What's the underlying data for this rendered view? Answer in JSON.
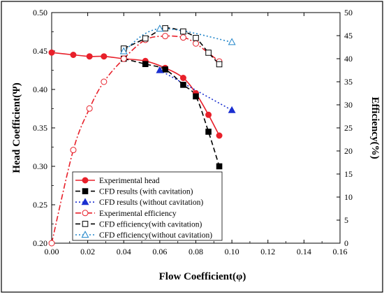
{
  "chart_data": {
    "type": "line",
    "xlabel": "Flow Coefficient(φ)",
    "ylabel": "Head Coefficient(Ψ)",
    "y2label": "Efficiency(%)",
    "xlim": [
      0.0,
      0.16
    ],
    "ylim": [
      0.2,
      0.5
    ],
    "y2lim": [
      0,
      50
    ],
    "xticks": [
      "0.00",
      "0.02",
      "0.04",
      "0.06",
      "0.08",
      "0.10",
      "0.12",
      "0.14",
      "0.16"
    ],
    "yticks": [
      "0.20",
      "0.25",
      "0.30",
      "0.35",
      "0.40",
      "0.45",
      "0.50"
    ],
    "y2ticks": [
      "0",
      "5",
      "10",
      "15",
      "20",
      "25",
      "30",
      "35",
      "40",
      "45",
      "50"
    ],
    "grid": false,
    "legend_position": "bottom-center",
    "series": [
      {
        "name": "Experimental head",
        "axis": "left",
        "color": "#e8202a",
        "line": "solid",
        "marker": "circle",
        "filled": true,
        "x": [
          0.0,
          0.012,
          0.021,
          0.029,
          0.04,
          0.052,
          0.063,
          0.073,
          0.08,
          0.087,
          0.093
        ],
        "y": [
          0.448,
          0.445,
          0.443,
          0.443,
          0.44,
          0.437,
          0.428,
          0.415,
          0.395,
          0.367,
          0.34
        ]
      },
      {
        "name": "CFD results (with cavitation)",
        "axis": "left",
        "color": "#000000",
        "line": "dashed",
        "marker": "square",
        "filled": true,
        "x": [
          0.04,
          0.052,
          0.063,
          0.073,
          0.08,
          0.087,
          0.093
        ],
        "y": [
          0.44,
          0.433,
          0.426,
          0.406,
          0.391,
          0.345,
          0.3
        ]
      },
      {
        "name": "CFD results (without cavitation)",
        "axis": "left",
        "color": "#1a2fd0",
        "line": "dotted",
        "marker": "triangle",
        "filled": true,
        "x": [
          0.06,
          0.1
        ],
        "y": [
          0.425,
          0.373
        ]
      },
      {
        "name": "Experimental efficiency",
        "axis": "right",
        "color": "#e8202a",
        "line": "dashdot",
        "marker": "circle",
        "filled": false,
        "x": [
          0.0,
          0.012,
          0.021,
          0.029,
          0.04,
          0.052,
          0.063,
          0.073,
          0.08,
          0.093
        ],
        "y": [
          0.0,
          20.2,
          29.2,
          35.0,
          40.0,
          44.1,
          44.9,
          44.6,
          43.3,
          39.4
        ]
      },
      {
        "name": "CFD efficiency(with cavitation)",
        "axis": "right",
        "color": "#000000",
        "line": "dashed",
        "marker": "square",
        "filled": false,
        "x": [
          0.04,
          0.052,
          0.063,
          0.073,
          0.08,
          0.087,
          0.093
        ],
        "y": [
          42.2,
          44.4,
          46.6,
          45.9,
          44.5,
          41.3,
          38.8
        ]
      },
      {
        "name": "CFD efficiency(without cavitation)",
        "axis": "right",
        "color": "#1f84c9",
        "line": "dotted",
        "marker": "triangle",
        "filled": false,
        "x": [
          0.04,
          0.06,
          0.1
        ],
        "y": [
          41.6,
          46.5,
          43.6
        ]
      }
    ]
  }
}
